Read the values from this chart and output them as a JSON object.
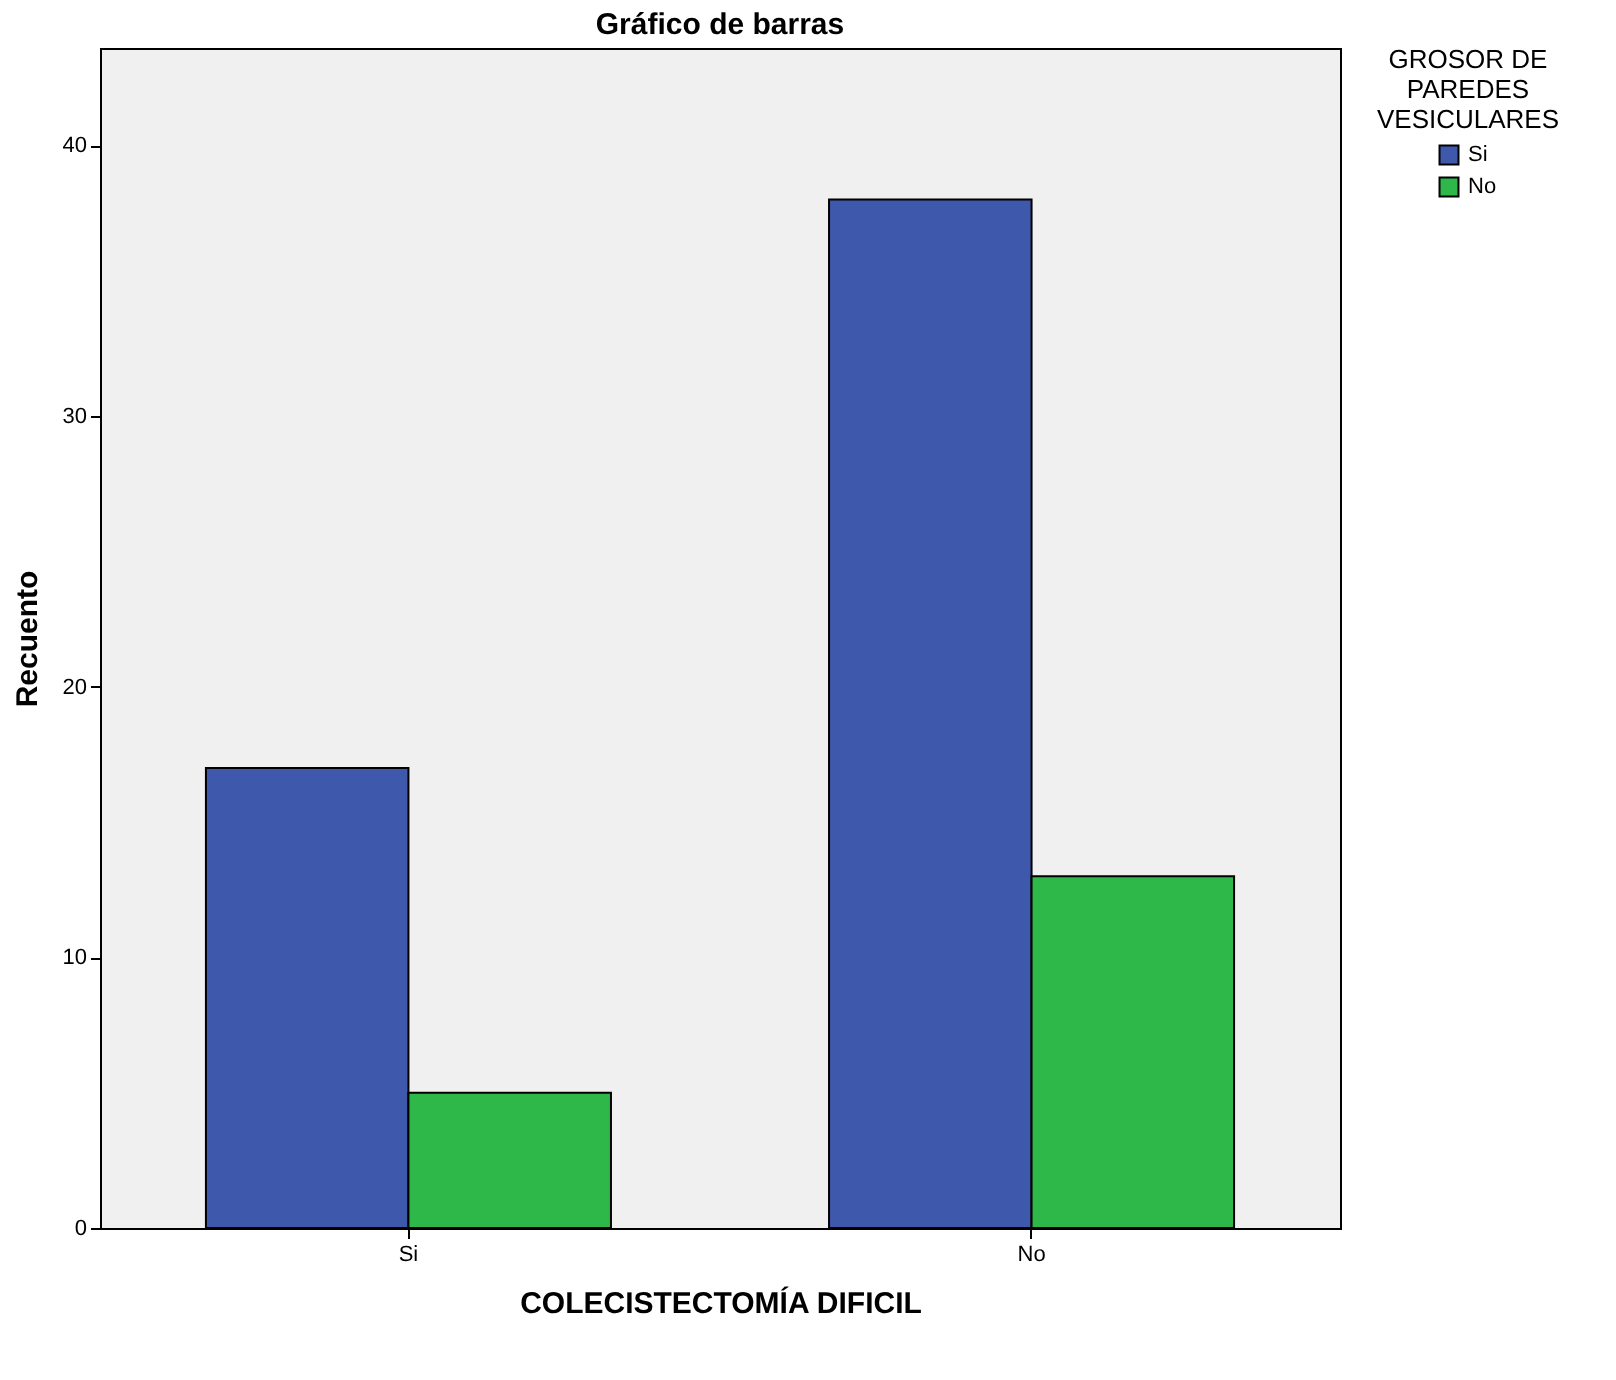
{
  "chart_data": {
    "type": "bar",
    "title": "Gráfico de barras",
    "xlabel": "COLECISTECTOMÍA DIFICIL",
    "ylabel": "Recuento",
    "legend_title": "GROSOR DE PAREDES VESICULARES",
    "categories": [
      "Si",
      "No"
    ],
    "series": [
      {
        "name": "Si",
        "color": "#3e58ac",
        "values": [
          17,
          38
        ]
      },
      {
        "name": "No",
        "color": "#2fb84a",
        "values": [
          5,
          13
        ]
      }
    ],
    "ylim": [
      0,
      43.6
    ],
    "yticks": [
      0,
      10,
      20,
      30,
      40
    ],
    "grid": false,
    "legend": "top right"
  }
}
